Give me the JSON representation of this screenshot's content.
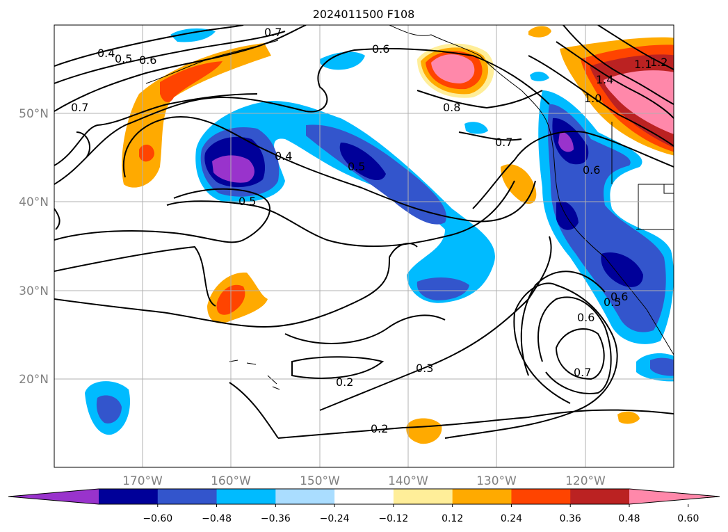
{
  "title": "2024011500 F108",
  "map": {
    "region": "North-East Pacific",
    "projection": "lat-lon",
    "lon_range": [
      -180,
      -110
    ],
    "lat_range": [
      10,
      60
    ],
    "gridlines": true,
    "lon_labels": [
      "170°W",
      "160°W",
      "150°W",
      "140°W",
      "130°W",
      "120°W"
    ],
    "lat_labels": [
      "50°N",
      "40°N",
      "30°N",
      "20°N"
    ],
    "contour_labels": [
      "0.4",
      "0.5",
      "0.6",
      "0.7",
      "0.6",
      "0.8",
      "0.7",
      "0.4",
      "0.5",
      "0.5",
      "0.6",
      "0.6",
      "0.5",
      "0.6",
      "0.7",
      "0.3",
      "0.2",
      "0.2",
      "1.4",
      "1.2",
      "1.1",
      "1.0",
      "0.7"
    ]
  },
  "colorbar": {
    "ticks": [
      "−0.60",
      "−0.48",
      "−0.36",
      "−0.24",
      "−0.12",
      "0.12",
      "0.24",
      "0.36",
      "0.48",
      "0.60"
    ],
    "colors": [
      "#9933cc",
      "#000099",
      "#3355cc",
      "#00bbff",
      "#aaddff",
      "#ffffff",
      "#ffee99",
      "#ffaa00",
      "#ff4400",
      "#bb2222",
      "#ff88aa"
    ],
    "extend": "both"
  }
}
